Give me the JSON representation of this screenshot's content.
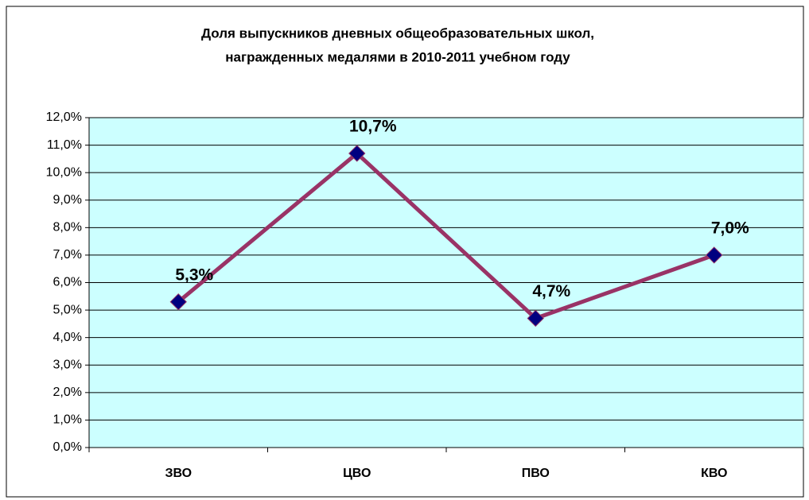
{
  "chart_data": {
    "type": "line",
    "title": [
      "Доля выпускников дневных общеобразовательных школ,",
      "награжденных медалями в 2010-2011 учебном году"
    ],
    "categories": [
      "ЗВО",
      "ЦВО",
      "ПВО",
      "КВО"
    ],
    "values": [
      5.3,
      10.7,
      4.7,
      7.0
    ],
    "value_labels": [
      "5,3%",
      "10,7%",
      "4,7%",
      "7,0%"
    ],
    "line_color": "#993366",
    "marker_color": "#000080",
    "plot_background": "#ccffff",
    "ylim": [
      0,
      12
    ],
    "yticks": [
      {
        "value": 0,
        "label": "0,0%"
      },
      {
        "value": 1,
        "label": "1,0%"
      },
      {
        "value": 2,
        "label": "2,0%"
      },
      {
        "value": 3,
        "label": "3,0%"
      },
      {
        "value": 4,
        "label": "4,0%"
      },
      {
        "value": 5,
        "label": "5,0%"
      },
      {
        "value": 6,
        "label": "6,0%"
      },
      {
        "value": 7,
        "label": "7,0%"
      },
      {
        "value": 8,
        "label": "8,0%"
      },
      {
        "value": 9,
        "label": "9,0%"
      },
      {
        "value": 10,
        "label": "10,0%"
      },
      {
        "value": 11,
        "label": "11,0%"
      },
      {
        "value": 12,
        "label": "12,0%"
      }
    ],
    "grid": true
  }
}
